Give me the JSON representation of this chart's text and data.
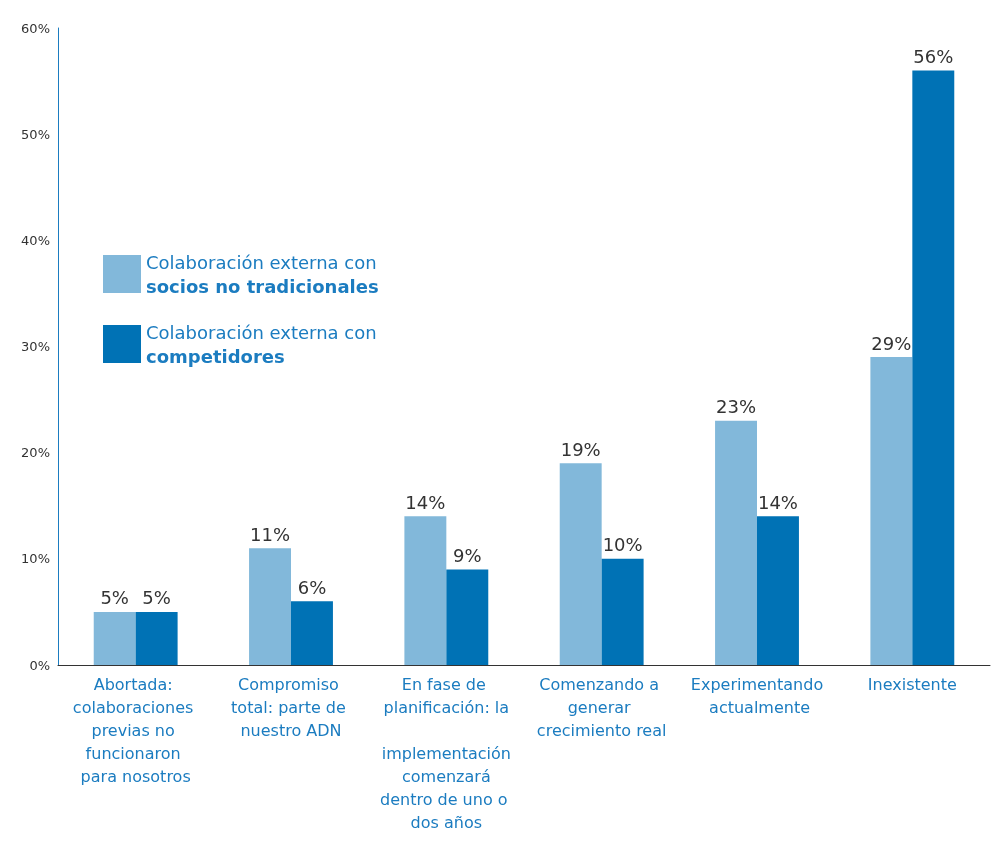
{
  "chart_data": {
    "type": "bar",
    "categories": [
      "Abortada: colaboraciones previas no funcionaron para nosotros",
      "Compromiso total: parte de nuestro ADN",
      "En fase de planificación: la implementación comenzará dentro de uno o dos años",
      "Comenzando a generar crecimiento real",
      "Experimentando actualmente",
      "Inexistente"
    ],
    "series": [
      {
        "name": "Colaboración externa con\nsocios no tradicionales",
        "color": "#82b8da",
        "values": [
          5,
          11,
          14,
          19,
          23,
          29
        ],
        "value_labels": [
          "5%",
          "11%",
          "14%",
          "19%",
          "23%",
          "29%"
        ]
      },
      {
        "name": "Colaboración externa con\ncompetidores",
        "color": "#0072b5",
        "values": [
          5,
          6,
          9,
          10,
          14,
          56
        ],
        "value_labels": [
          "5%",
          "6%",
          "9%",
          "10%",
          "14%",
          "56%"
        ]
      }
    ],
    "ylim": [
      0,
      60
    ],
    "yticks": [
      {
        "value": 0,
        "label": "0%"
      },
      {
        "value": 10,
        "label": "10%"
      },
      {
        "value": 20,
        "label": "20%"
      },
      {
        "value": 30,
        "label": "30%"
      },
      {
        "value": 40,
        "label": "40%"
      },
      {
        "value": 50,
        "label": "50%"
      },
      {
        "value": 60,
        "label": "60%"
      }
    ],
    "grid": false,
    "legend": "top left"
  }
}
